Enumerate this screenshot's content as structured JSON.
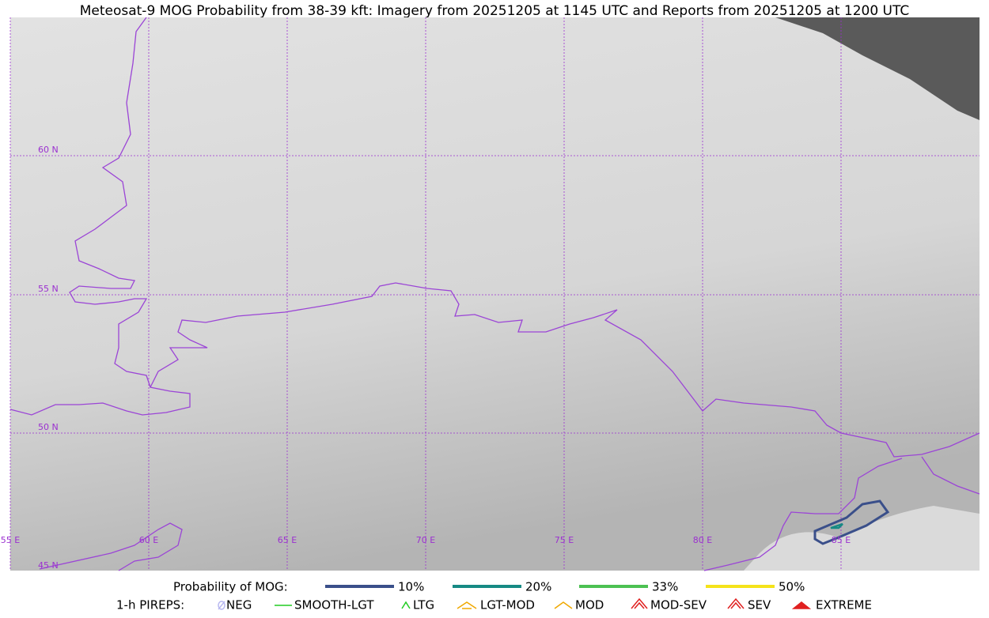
{
  "title": "Meteosat-9 MOG Probability from 38-39 kft: Imagery from 20251205 at 1145 UTC and Reports from 20251205 at 1200 UTC",
  "map": {
    "lat_labels": [
      "60 N",
      "55 N",
      "50 N",
      "45 N"
    ],
    "lon_labels": [
      "55 E",
      "60 E",
      "65 E",
      "70 E",
      "75 E",
      "80 E",
      "85 E"
    ]
  },
  "legend": {
    "probability": {
      "title": "Probability of MOG:",
      "items": [
        {
          "label": "10%",
          "color": "#3a4f8a"
        },
        {
          "label": "20%",
          "color": "#168a84"
        },
        {
          "label": "33%",
          "color": "#4cc152"
        },
        {
          "label": "50%",
          "color": "#f5e31a"
        }
      ]
    },
    "pireps": {
      "title": "1-h PIREPS:",
      "items": [
        {
          "label": "NEG",
          "color": "#b8b8f0"
        },
        {
          "label": "SMOOTH-LGT",
          "color": "#22cc22"
        },
        {
          "label": "LTG",
          "color": "#22cc22"
        },
        {
          "label": "LGT-MOD",
          "color": "#f0a800"
        },
        {
          "label": "MOD",
          "color": "#f0a800"
        },
        {
          "label": "MOD-SEV",
          "color": "#e02020"
        },
        {
          "label": "SEV",
          "color": "#e02020"
        },
        {
          "label": "EXTREME",
          "color": "#e02020"
        }
      ]
    }
  }
}
